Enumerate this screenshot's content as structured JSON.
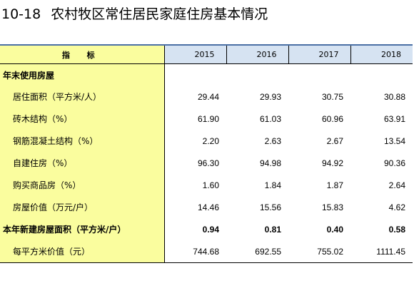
{
  "title": {
    "number": "10-18",
    "text": "农村牧区常住居民家庭住房基本情况"
  },
  "table": {
    "header": {
      "indicator": "指 标",
      "years": [
        "2015",
        "2016",
        "2017",
        "2018"
      ]
    },
    "rows": [
      {
        "label": "年末使用房屋",
        "kind": "section",
        "values": [
          "",
          "",
          "",
          ""
        ]
      },
      {
        "label": "居住面积（平方米/人）",
        "kind": "child",
        "values": [
          "29.44",
          "29.93",
          "30.75",
          "30.88"
        ]
      },
      {
        "label": "砖木结构（%）",
        "kind": "child",
        "values": [
          "61.90",
          "61.03",
          "60.96",
          "63.91"
        ]
      },
      {
        "label": "钢筋混凝土结构（%）",
        "kind": "child",
        "values": [
          "2.20",
          "2.63",
          "2.67",
          "13.54"
        ]
      },
      {
        "label": "自建住房（%）",
        "kind": "child",
        "values": [
          "96.30",
          "94.98",
          "94.92",
          "90.36"
        ]
      },
      {
        "label": "购买商品房（%）",
        "kind": "child",
        "values": [
          "1.60",
          "1.84",
          "1.87",
          "2.64"
        ]
      },
      {
        "label": "房屋价值（万元/户）",
        "kind": "child",
        "values": [
          "14.46",
          "15.56",
          "15.83",
          "4.62"
        ]
      },
      {
        "label": "本年新建房屋面积（平方米/户）",
        "kind": "boldrow",
        "values": [
          "0.94",
          "0.81",
          "0.40",
          "0.58"
        ]
      },
      {
        "label": "每平方米价值（元）",
        "kind": "child",
        "values": [
          "744.68",
          "692.55",
          "755.02",
          "1111.45"
        ]
      }
    ]
  },
  "colors": {
    "indicator_bg": "#fafd9e",
    "header_year_bg": "#d6e3f2",
    "top_rule": "#4a6fa5"
  }
}
